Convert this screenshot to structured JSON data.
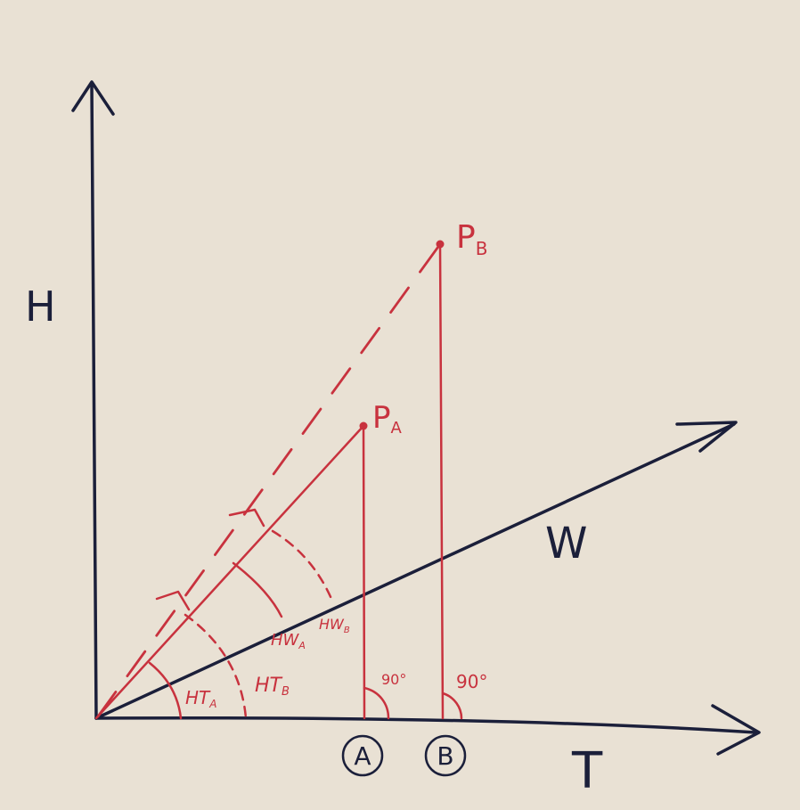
{
  "axes": {
    "y_label": "H",
    "x_label": "T"
  },
  "vector_label": "W",
  "points": {
    "a": "P",
    "a_sub": "A",
    "b": "P",
    "b_sub": "B"
  },
  "foot_markers": {
    "a": "A",
    "b": "B"
  },
  "angles": {
    "ht_a": "HT",
    "ht_a_sub": "A",
    "ht_b": "HT",
    "ht_b_sub": "B",
    "hw_a": "HW",
    "hw_a_sub": "A",
    "hw_b": "HW",
    "hw_b_sub": "B",
    "right_a": "90°",
    "right_b": "90°"
  },
  "colors": {
    "paper": "#e9e1d4",
    "ink_blue": "#1b1f3a",
    "ink_red": "#c8323e"
  }
}
